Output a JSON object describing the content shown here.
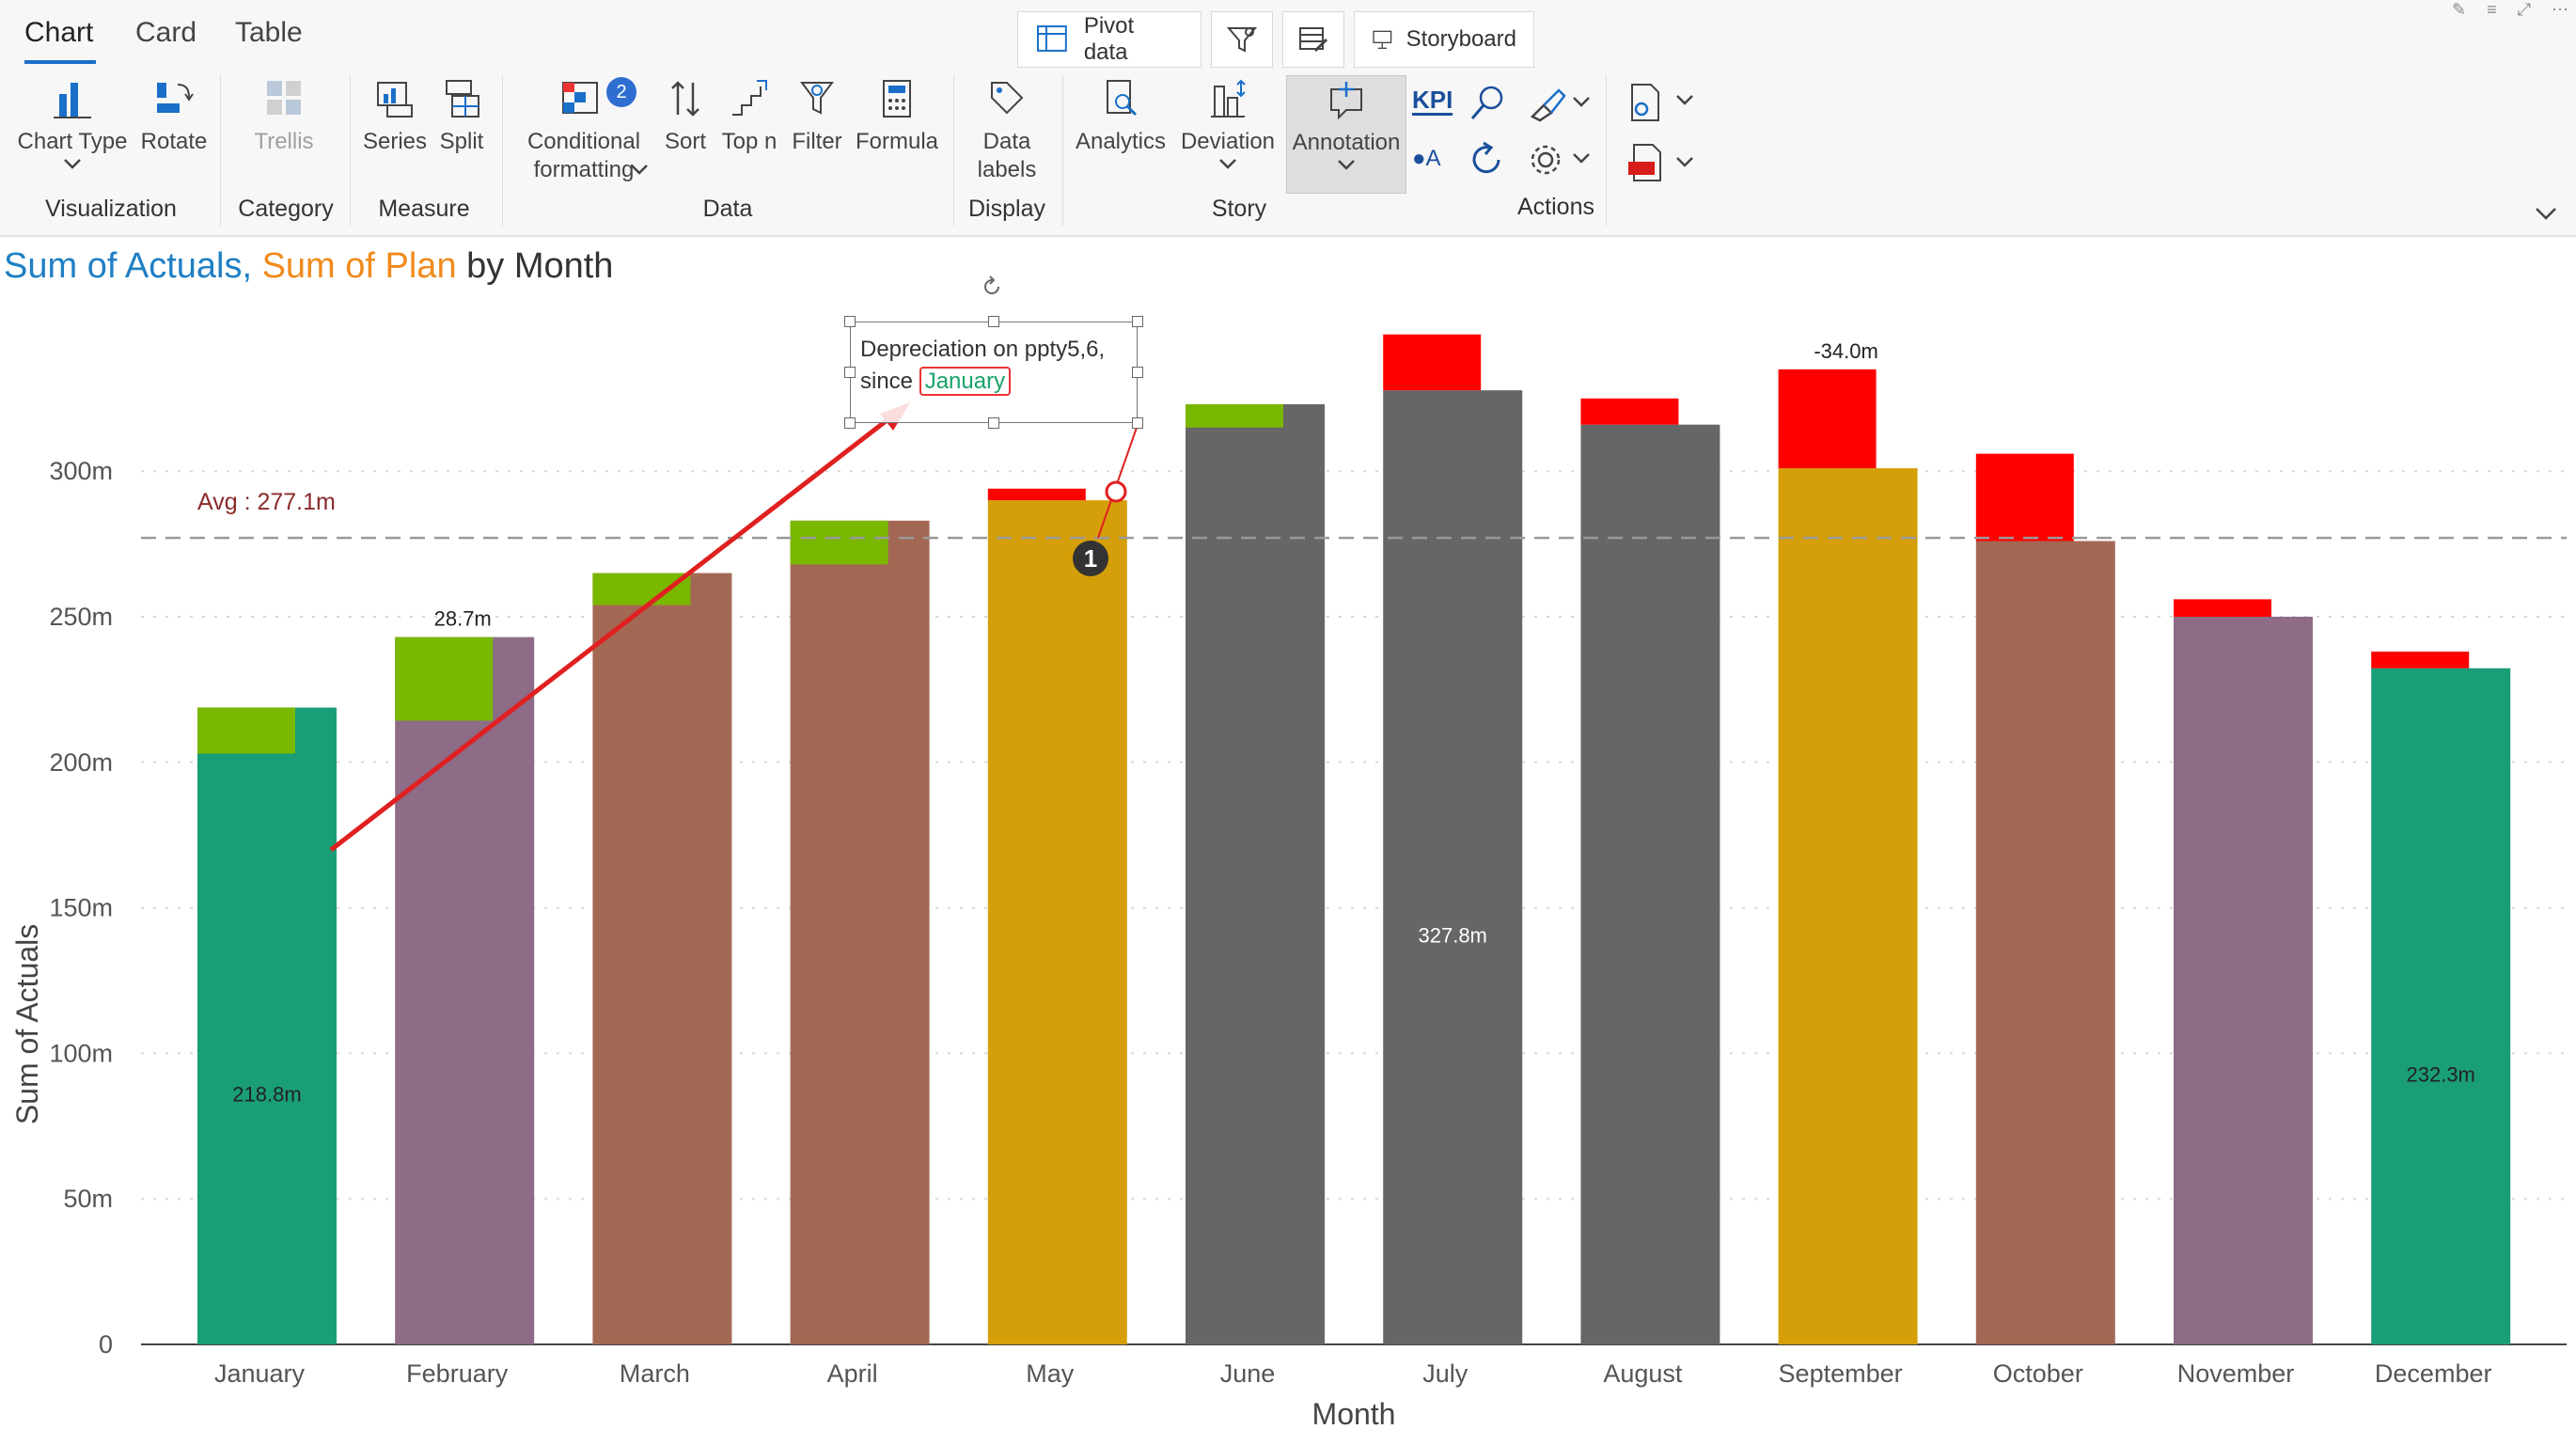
{
  "ribbon": {
    "tabs": [
      {
        "label": "Chart",
        "active": true
      },
      {
        "label": "Card",
        "active": false
      },
      {
        "label": "Table",
        "active": false
      }
    ],
    "top_buttons": [
      {
        "label": "Pivot data",
        "icon": "pivot-data-icon"
      },
      {
        "label": "",
        "icon": "filter-settings-icon"
      },
      {
        "label": "",
        "icon": "table-edit-icon"
      },
      {
        "label": "Storyboard",
        "icon": "storyboard-icon"
      }
    ],
    "buttons": {
      "chart_type": "Chart Type",
      "rotate": "Rotate",
      "trellis": "Trellis",
      "series": "Series",
      "split": "Split",
      "conditional_1": "Conditional",
      "conditional_2": "formatting",
      "conditional_badge": "2",
      "sort": "Sort",
      "top_n": "Top n",
      "filter": "Filter",
      "formula": "Formula",
      "data_labels_1": "Data",
      "data_labels_2": "labels",
      "analytics": "Analytics",
      "deviation": "Deviation",
      "annotation": "Annotation",
      "kpi": "KPI",
      "oa": "●A"
    },
    "groups": {
      "visualization": "Visualization",
      "category": "Category",
      "measure": "Measure",
      "data": "Data",
      "display": "Display",
      "story": "Story",
      "actions": "Actions"
    }
  },
  "title": {
    "part1": "Sum of Actuals,",
    "part2": "Sum of Plan",
    "part3": "by Month"
  },
  "annotation": {
    "line1": "Depreciation on ppty5,6,",
    "line2_prefix": "since",
    "line2_highlight": "January",
    "marker": "1"
  },
  "colors": {
    "positive_variance": "#7ab800",
    "negative_variance": "#ff0000",
    "avg_line": "#999999",
    "arrow": "#e02020"
  },
  "chart_data": {
    "type": "bar",
    "xlabel": "Month",
    "ylabel": "Sum of Actuals",
    "ylim": [
      0,
      340
    ],
    "yticks": [
      {
        "v": 0,
        "label": "0"
      },
      {
        "v": 50,
        "label": "50m"
      },
      {
        "v": 100,
        "label": "100m"
      },
      {
        "v": 150,
        "label": "150m"
      },
      {
        "v": 200,
        "label": "200m"
      },
      {
        "v": 250,
        "label": "250m"
      },
      {
        "v": 300,
        "label": "300m"
      }
    ],
    "average": {
      "value": 277.1,
      "label": "Avg : 277.1m"
    },
    "categories": [
      "January",
      "February",
      "March",
      "April",
      "May",
      "June",
      "July",
      "August",
      "September",
      "October",
      "November",
      "December"
    ],
    "actuals": [
      218.8,
      243.0,
      265.0,
      283.0,
      290.0,
      323.0,
      327.8,
      316.0,
      301.0,
      276.0,
      250.0,
      232.3
    ],
    "plan": [
      203.0,
      214.3,
      254.0,
      268.0,
      294.0,
      315.0,
      347.0,
      325.0,
      335.0,
      306.0,
      256.0,
      238.0
    ],
    "bar_colors": [
      "#1a9e77",
      "#8e6b87",
      "#a36853",
      "#a36853",
      "#d59f09",
      "#666666",
      "#666666",
      "#666666",
      "#d59f09",
      "#a36853",
      "#8e6b87",
      "#1a9e77"
    ],
    "data_labels": [
      {
        "index": 0,
        "text": "218.8m",
        "pos": "inside"
      },
      {
        "index": 1,
        "text": "28.7m",
        "pos": "top"
      },
      {
        "index": 6,
        "text": "327.8m",
        "pos": "inside"
      },
      {
        "index": 8,
        "text": "-34.0m",
        "pos": "top"
      },
      {
        "index": 11,
        "text": "232.3m",
        "pos": "inside"
      }
    ],
    "grid": true
  }
}
